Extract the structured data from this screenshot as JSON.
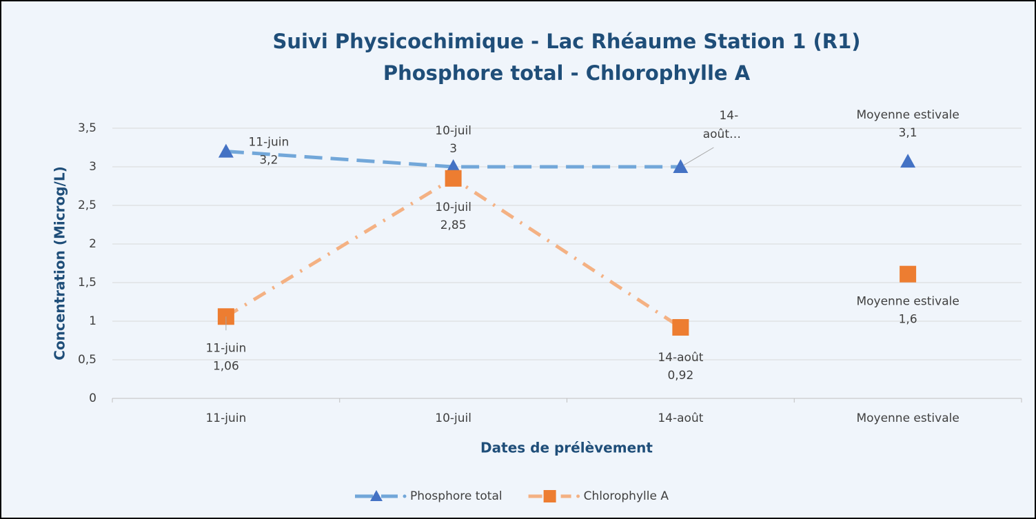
{
  "chart_data": {
    "type": "line",
    "title": "Suivi Physicochimique - Lac Rhéaume Station 1 (R1)",
    "subtitle": "Phosphore total - Chlorophylle A",
    "xlabel": "Dates de prélèvement",
    "ylabel": "Concentration (Microg/L)",
    "categories": [
      "11-juin",
      "10-juil",
      "14-août",
      "Moyenne estivale"
    ],
    "series": [
      {
        "name": "Phosphore total",
        "color": "#4472c4",
        "line_color": "#72a7d9",
        "dash": "dashed",
        "marker": "triangle",
        "values": [
          3.2,
          3,
          3,
          3.07
        ],
        "value_labels": [
          "3,2",
          "3",
          null,
          "3,1"
        ],
        "truncated_label": [
          "14-",
          "août…"
        ]
      },
      {
        "name": "Chlorophylle A",
        "color": "#ed7d31",
        "line_color": "#f4b183",
        "dash": "dashdot",
        "marker": "square",
        "values": [
          1.06,
          2.85,
          0.92,
          1.61
        ],
        "value_labels": [
          "1,06",
          "2,85",
          "0,92",
          "1,6"
        ]
      }
    ],
    "unconnected_last": true,
    "ylim": [
      0,
      3.5
    ],
    "yticks": [
      0,
      {
        "value": 0.5,
        "label": "0,5"
      },
      1,
      {
        "value": 1.5,
        "label": "1,5"
      },
      2,
      {
        "value": 2.5,
        "label": "2,5"
      },
      3,
      {
        "value": 3.5,
        "label": "3,5"
      }
    ],
    "grid": true,
    "legend": "bottom"
  }
}
